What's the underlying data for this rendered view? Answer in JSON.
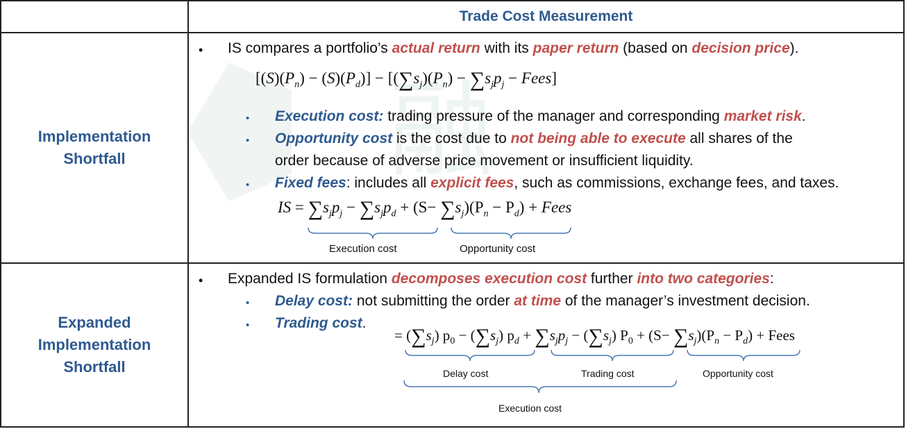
{
  "header": {
    "title": "Trade Cost Measurement"
  },
  "row1": {
    "label": "Implementation\nShortfall",
    "bullet1": {
      "pre": "IS compares a portfolio’s ",
      "em1": "actual return",
      "mid1": " with its ",
      "em2": "paper return",
      "mid2": " (based on ",
      "em3": "decision price",
      "post": ")."
    },
    "sub1": {
      "em": "Execution cost:",
      "text": " trading pressure of the manager and corresponding ",
      "em2": "market risk",
      "post": "."
    },
    "sub2": {
      "em": "Opportunity cost",
      "text": " is the cost due to ",
      "em2": "not being able to execute",
      "post": " all shares of the",
      "line2": "order because of adverse price movement or insufficient liquidity."
    },
    "sub3": {
      "em": "Fixed fees",
      "text": ": includes all ",
      "em2": "explicit fees",
      "post": ", such as commissions, exchange fees, and taxes."
    },
    "brace_labels": {
      "execution": "Execution cost",
      "opportunity": "Opportunity cost"
    }
  },
  "row2": {
    "label": "Expanded\nImplementation\nShortfall",
    "bullet1": {
      "pre": "Expanded IS formulation ",
      "em1": "decomposes execution cost",
      "mid": " further ",
      "em2": "into two categories",
      "post": ":"
    },
    "sub1": {
      "em": "Delay cost:",
      "text": " not submitting the order ",
      "em2": "at time",
      "post": " of the manager’s investment decision."
    },
    "sub2": {
      "em": "Trading cost",
      "post": "."
    },
    "brace_labels": {
      "delay": "Delay cost",
      "trading": "Trading cost",
      "opportunity": "Opportunity cost",
      "execution": "Execution cost"
    }
  },
  "colors": {
    "blue": "#2e5a8f",
    "red": "#c0504d"
  }
}
